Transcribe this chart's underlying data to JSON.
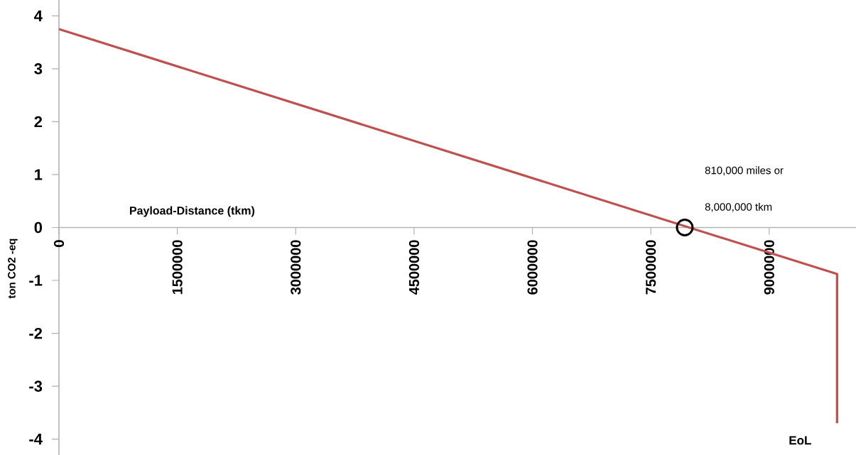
{
  "chart_data": {
    "type": "line",
    "xlabel": "Payload-Distance (tkm)",
    "ylabel": "ton CO2 -eq",
    "xlim": [
      0,
      10100000
    ],
    "ylim": [
      -4.3,
      4.3
    ],
    "xticks": [
      0,
      1500000,
      3000000,
      4500000,
      6000000,
      7500000,
      9000000
    ],
    "yticks": [
      -4,
      -3,
      -2,
      -1,
      0,
      1,
      2,
      3,
      4
    ],
    "grid": false,
    "series": [
      {
        "type": "line",
        "color": "#c0504d",
        "marker": "none",
        "x": [
          0,
          9860000,
          9860000
        ],
        "values": [
          3.75,
          -0.88,
          -3.7
        ]
      },
      {
        "type": "scatter",
        "color": "#000000",
        "marker": "circle",
        "x": [
          7930000
        ],
        "values": [
          0
        ]
      }
    ],
    "annotations": [
      "810,000 miles or",
      "8,000,000 tkm",
      "EoL"
    ]
  }
}
